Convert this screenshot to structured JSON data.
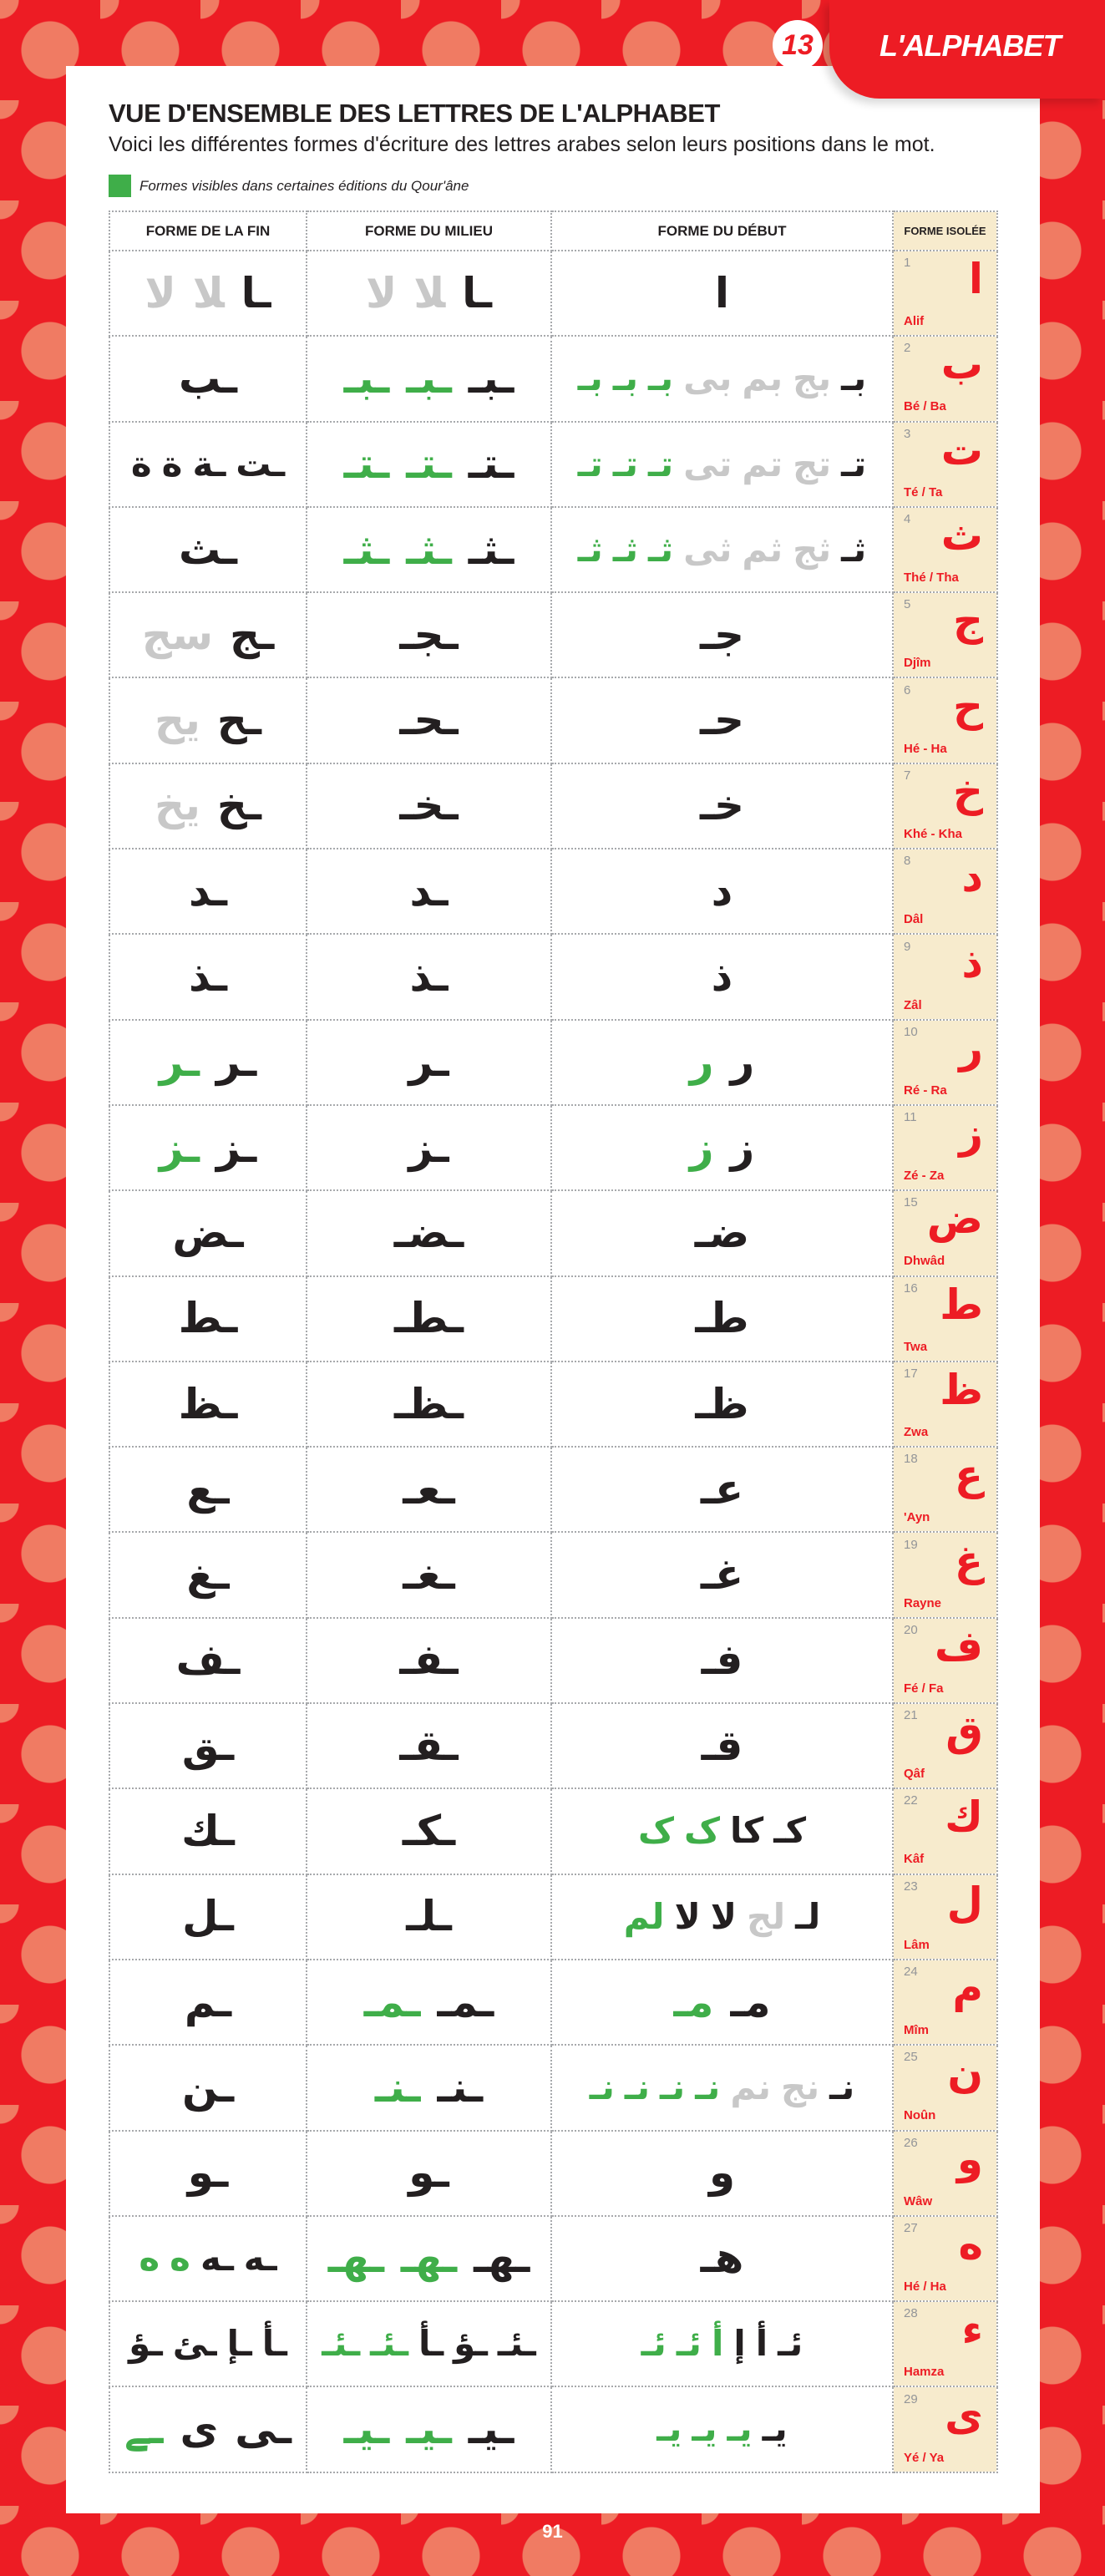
{
  "header": {
    "chapter": "13",
    "tab_title": "L'ALPHABET"
  },
  "title": "VUE D'ENSEMBLE DES LETTRES DE L'ALPHABET",
  "subtitle": "Voici les différentes formes d'écriture des lettres arabes selon leurs positions dans le mot.",
  "legend": {
    "color": "#3fae49",
    "text": "Formes visibles dans certaines éditions du Qour'âne"
  },
  "colors": {
    "k": "#231f20",
    "g": "#3fae49",
    "x": "#c8c8c8",
    "accent": "#ed1c24",
    "iso_bg": "#f7ebcd"
  },
  "columns": [
    "FORME DE LA FIN",
    "FORME DU MILIEU",
    "FORME DU DÉBUT",
    "FORME ISOLÉE"
  ],
  "rows": [
    {
      "n": "1",
      "iso": "ا",
      "name": "Alif",
      "fin": [
        [
          "ـا",
          "k"
        ],
        [
          "ﻼ",
          "x"
        ],
        [
          "ﻻ",
          "x"
        ]
      ],
      "mid": [
        [
          "ـا",
          "k"
        ],
        [
          "ﻼ",
          "x"
        ],
        [
          "ﻻ",
          "x"
        ]
      ],
      "deb": [
        [
          "ا",
          "k"
        ]
      ]
    },
    {
      "n": "2",
      "iso": "ب",
      "name": "Bé / Ba",
      "fin": [
        [
          "ـب",
          "k"
        ]
      ],
      "mid": [
        [
          "ـبـ",
          "k"
        ],
        [
          "ـبـ",
          "g"
        ],
        [
          "ـبـ",
          "g"
        ]
      ],
      "deb": [
        [
          "بـ",
          "k"
        ],
        [
          "بج",
          "x"
        ],
        [
          "بم",
          "x"
        ],
        [
          "بى",
          "x"
        ],
        [
          "بـ",
          "g"
        ],
        [
          "بـ",
          "g"
        ],
        [
          "بـ",
          "g"
        ]
      ]
    },
    {
      "n": "3",
      "iso": "ت",
      "name": "Té / Ta",
      "fin": [
        [
          "ـت",
          "k"
        ],
        [
          "ـة",
          "k"
        ],
        [
          "ة",
          "k"
        ],
        [
          "ة",
          "k"
        ]
      ],
      "mid": [
        [
          "ـتـ",
          "k"
        ],
        [
          "ـتـ",
          "g"
        ],
        [
          "ـتـ",
          "g"
        ]
      ],
      "deb": [
        [
          "تـ",
          "k"
        ],
        [
          "تج",
          "x"
        ],
        [
          "تم",
          "x"
        ],
        [
          "تى",
          "x"
        ],
        [
          "تـ",
          "g"
        ],
        [
          "تـ",
          "g"
        ],
        [
          "تـ",
          "g"
        ]
      ]
    },
    {
      "n": "4",
      "iso": "ث",
      "name": "Thé / Tha",
      "fin": [
        [
          "ـث",
          "k"
        ]
      ],
      "mid": [
        [
          "ـثـ",
          "k"
        ],
        [
          "ـثـ",
          "g"
        ],
        [
          "ـثـ",
          "g"
        ]
      ],
      "deb": [
        [
          "ثـ",
          "k"
        ],
        [
          "ثج",
          "x"
        ],
        [
          "ثم",
          "x"
        ],
        [
          "ثى",
          "x"
        ],
        [
          "ثـ",
          "g"
        ],
        [
          "ثـ",
          "g"
        ],
        [
          "ثـ",
          "g"
        ]
      ]
    },
    {
      "n": "5",
      "iso": "ج",
      "name": "Djîm",
      "fin": [
        [
          "ـج",
          "k"
        ],
        [
          "سج",
          "x"
        ]
      ],
      "mid": [
        [
          "ـجـ",
          "k"
        ]
      ],
      "deb": [
        [
          "جـ",
          "k"
        ]
      ]
    },
    {
      "n": "6",
      "iso": "ح",
      "name": "Hé - Ha",
      "fin": [
        [
          "ـح",
          "k"
        ],
        [
          "يح",
          "x"
        ]
      ],
      "mid": [
        [
          "ـحـ",
          "k"
        ]
      ],
      "deb": [
        [
          "حـ",
          "k"
        ]
      ]
    },
    {
      "n": "7",
      "iso": "خ",
      "name": "Khé - Kha",
      "fin": [
        [
          "ـخ",
          "k"
        ],
        [
          "يخ",
          "x"
        ]
      ],
      "mid": [
        [
          "ـخـ",
          "k"
        ]
      ],
      "deb": [
        [
          "خـ",
          "k"
        ]
      ]
    },
    {
      "n": "8",
      "iso": "د",
      "name": "Dâl",
      "fin": [
        [
          "ـد",
          "k"
        ]
      ],
      "mid": [
        [
          "ـد",
          "k"
        ]
      ],
      "deb": [
        [
          "د",
          "k"
        ]
      ]
    },
    {
      "n": "9",
      "iso": "ذ",
      "name": "Zâl",
      "fin": [
        [
          "ـذ",
          "k"
        ]
      ],
      "mid": [
        [
          "ـذ",
          "k"
        ]
      ],
      "deb": [
        [
          "ذ",
          "k"
        ]
      ]
    },
    {
      "n": "10",
      "iso": "ر",
      "name": "Ré - Ra",
      "fin": [
        [
          "ـر",
          "k"
        ],
        [
          "ـر",
          "g"
        ]
      ],
      "mid": [
        [
          "ـر",
          "k"
        ]
      ],
      "deb": [
        [
          "ر",
          "k"
        ],
        [
          "ر",
          "g"
        ]
      ]
    },
    {
      "n": "11",
      "iso": "ز",
      "name": "Zé - Za",
      "fin": [
        [
          "ـز",
          "k"
        ],
        [
          "ـز",
          "g"
        ]
      ],
      "mid": [
        [
          "ـز",
          "k"
        ]
      ],
      "deb": [
        [
          "ز",
          "k"
        ],
        [
          "ز",
          "g"
        ]
      ]
    },
    {
      "n": "15",
      "iso": "ض",
      "name": "Dhwâd",
      "fin": [
        [
          "ـض",
          "k"
        ]
      ],
      "mid": [
        [
          "ـضـ",
          "k"
        ]
      ],
      "deb": [
        [
          "ضـ",
          "k"
        ]
      ]
    },
    {
      "n": "16",
      "iso": "ط",
      "name": "Twa",
      "fin": [
        [
          "ـط",
          "k"
        ]
      ],
      "mid": [
        [
          "ـطـ",
          "k"
        ]
      ],
      "deb": [
        [
          "طـ",
          "k"
        ]
      ]
    },
    {
      "n": "17",
      "iso": "ظ",
      "name": "Zwa",
      "fin": [
        [
          "ـظ",
          "k"
        ]
      ],
      "mid": [
        [
          "ـظـ",
          "k"
        ]
      ],
      "deb": [
        [
          "ظـ",
          "k"
        ]
      ]
    },
    {
      "n": "18",
      "iso": "ع",
      "name": "'Ayn",
      "fin": [
        [
          "ـع",
          "k"
        ]
      ],
      "mid": [
        [
          "ـعـ",
          "k"
        ]
      ],
      "deb": [
        [
          "عـ",
          "k"
        ]
      ]
    },
    {
      "n": "19",
      "iso": "غ",
      "name": "Rayne",
      "fin": [
        [
          "ـغ",
          "k"
        ]
      ],
      "mid": [
        [
          "ـغـ",
          "k"
        ]
      ],
      "deb": [
        [
          "غـ",
          "k"
        ]
      ]
    },
    {
      "n": "20",
      "iso": "ف",
      "name": "Fé / Fa",
      "fin": [
        [
          "ـف",
          "k"
        ]
      ],
      "mid": [
        [
          "ـفـ",
          "k"
        ]
      ],
      "deb": [
        [
          "فـ",
          "k"
        ]
      ]
    },
    {
      "n": "21",
      "iso": "ق",
      "name": "Qâf",
      "fin": [
        [
          "ـق",
          "k"
        ]
      ],
      "mid": [
        [
          "ـقـ",
          "k"
        ]
      ],
      "deb": [
        [
          "قـ",
          "k"
        ]
      ]
    },
    {
      "n": "22",
      "iso": "ك",
      "name": "Kâf",
      "fin": [
        [
          "ـك",
          "k"
        ]
      ],
      "mid": [
        [
          "ـكـ",
          "k"
        ]
      ],
      "deb": [
        [
          "كـ",
          "k"
        ],
        [
          "كا",
          "k"
        ],
        [
          "ک",
          "g"
        ],
        [
          "ک",
          "g"
        ]
      ]
    },
    {
      "n": "23",
      "iso": "ل",
      "name": "Lâm",
      "fin": [
        [
          "ـل",
          "k"
        ]
      ],
      "mid": [
        [
          "ـلـ",
          "k"
        ]
      ],
      "deb": [
        [
          "لـ",
          "k"
        ],
        [
          "لج",
          "x"
        ],
        [
          "لا",
          "k"
        ],
        [
          "لا",
          "k"
        ],
        [
          "لم",
          "g"
        ]
      ]
    },
    {
      "n": "24",
      "iso": "م",
      "name": "Mîm",
      "fin": [
        [
          "ـم",
          "k"
        ]
      ],
      "mid": [
        [
          "ـمـ",
          "k"
        ],
        [
          "ـمـ",
          "g"
        ]
      ],
      "deb": [
        [
          "مـ",
          "k"
        ],
        [
          "مـ",
          "g"
        ]
      ]
    },
    {
      "n": "25",
      "iso": "ن",
      "name": "Noûn",
      "fin": [
        [
          "ـن",
          "k"
        ]
      ],
      "mid": [
        [
          "ـنـ",
          "k"
        ],
        [
          "ـنـ",
          "g"
        ]
      ],
      "deb": [
        [
          "نـ",
          "k"
        ],
        [
          "نج",
          "x"
        ],
        [
          "نم",
          "x"
        ],
        [
          "نـ",
          "g"
        ],
        [
          "نـ",
          "g"
        ],
        [
          "نـ",
          "g"
        ],
        [
          "نـ",
          "g"
        ]
      ]
    },
    {
      "n": "26",
      "iso": "و",
      "name": "Wâw",
      "fin": [
        [
          "ـو",
          "k"
        ]
      ],
      "mid": [
        [
          "ـو",
          "k"
        ]
      ],
      "deb": [
        [
          "و",
          "k"
        ]
      ]
    },
    {
      "n": "27",
      "iso": "ه",
      "name": "Hé / Ha",
      "fin": [
        [
          "ـه",
          "k"
        ],
        [
          "ـه",
          "k"
        ],
        [
          "ه",
          "g"
        ],
        [
          "ه",
          "g"
        ]
      ],
      "mid": [
        [
          "ـهـ",
          "k"
        ],
        [
          "ـهـ",
          "g"
        ],
        [
          "ـهـ",
          "g"
        ]
      ],
      "deb": [
        [
          "هـ",
          "k"
        ]
      ]
    },
    {
      "n": "28",
      "iso": "ء",
      "name": "Hamza",
      "fin": [
        [
          "ـأ",
          "k"
        ],
        [
          "ـإ",
          "k"
        ],
        [
          "ـئ",
          "k"
        ],
        [
          "ـؤ",
          "k"
        ]
      ],
      "mid": [
        [
          "ـئـ",
          "k"
        ],
        [
          "ـؤ",
          "k"
        ],
        [
          "ـأ",
          "k"
        ],
        [
          "ـئـ",
          "g"
        ],
        [
          "ـئـ",
          "g"
        ]
      ],
      "deb": [
        [
          "ئـ",
          "k"
        ],
        [
          "أ",
          "k"
        ],
        [
          "إ",
          "k"
        ],
        [
          "أ",
          "g"
        ],
        [
          "ئـ",
          "g"
        ],
        [
          "ئـ",
          "g"
        ]
      ]
    },
    {
      "n": "29",
      "iso": "ى",
      "name": "Yé / Ya",
      "fin": [
        [
          "ـى",
          "k"
        ],
        [
          "ى",
          "k"
        ],
        [
          "ـے",
          "g"
        ]
      ],
      "mid": [
        [
          "ـيـ",
          "k"
        ],
        [
          "ـيـ",
          "g"
        ],
        [
          "ـيـ",
          "g"
        ]
      ],
      "deb": [
        [
          "يـ",
          "k"
        ],
        [
          "يـ",
          "g"
        ],
        [
          "يـ",
          "g"
        ],
        [
          "يـ",
          "g"
        ]
      ]
    }
  ],
  "page_number": "91"
}
